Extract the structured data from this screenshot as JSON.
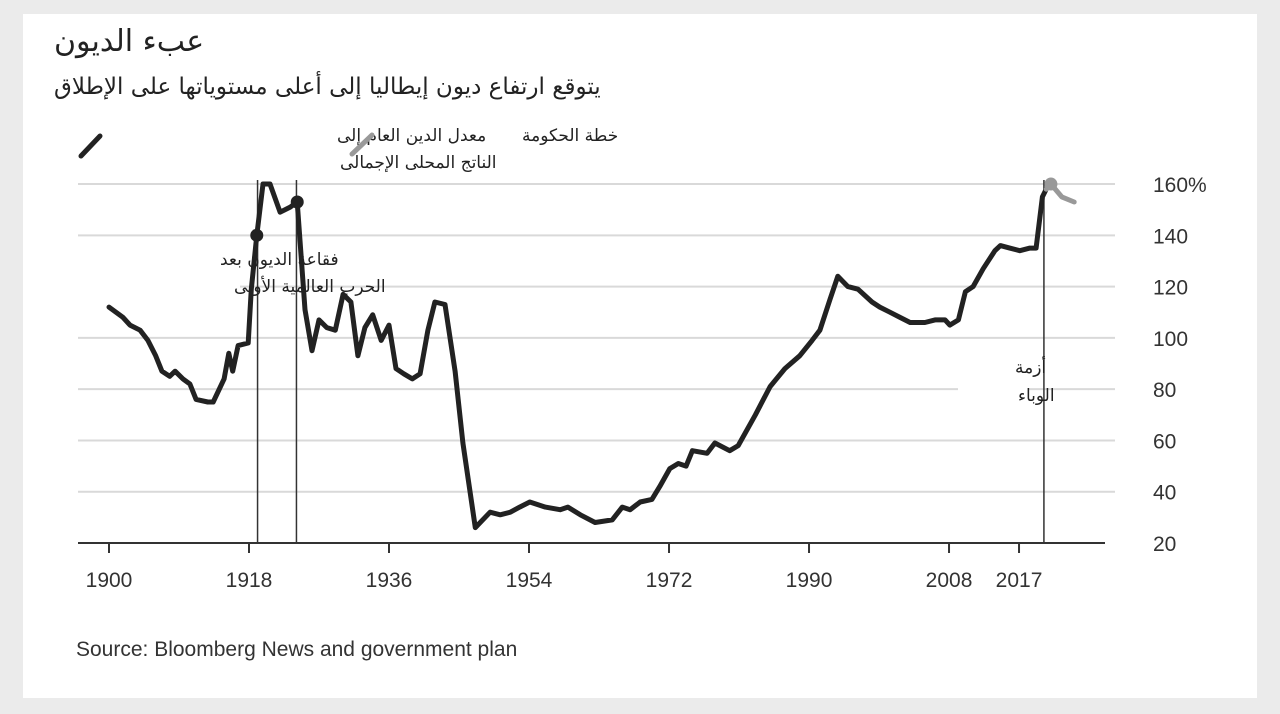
{
  "title": "عبء الديون",
  "subtitle": "يتوقع ارتفاع ديون إيطاليا إلى أعلى مستوياتها على الإطلاق",
  "source": "Source: Bloomberg News and government plan",
  "colors": {
    "background": "#ebebeb",
    "card": "#ffffff",
    "actual_line": "#222222",
    "plan_line": "#999999",
    "grid": "#d9d9d9",
    "axis": "#333333"
  },
  "chart_data": {
    "type": "line",
    "title": "عبء الديون",
    "subtitle": "يتوقع ارتفاع ديون إيطاليا إلى أعلى مستوياتها على الإطلاق",
    "xlabel": "",
    "ylabel": "",
    "xlim": [
      1896,
      2031
    ],
    "ylim": [
      20,
      160
    ],
    "x_ticks": [
      1900,
      1918,
      1936,
      1954,
      1972,
      1990,
      2008,
      2017
    ],
    "x_tick_labels": [
      "1900",
      "1918",
      "1936",
      "1954",
      "1972",
      "1990",
      "2008",
      "2017"
    ],
    "y_ticks": [
      20,
      40,
      60,
      80,
      100,
      120,
      140,
      160
    ],
    "y_tick_labels": [
      "20",
      "40",
      "60",
      "80",
      "100",
      "120",
      "140",
      "160%"
    ],
    "y_axis_position": "right",
    "grid": true,
    "legend": [
      {
        "name": "معدل الدين العام إلى الناتج المحلى الإجمالى",
        "line1": "معدل الدين العام إلى",
        "line2": "الناتج المحلى الإجمالى",
        "color": "#222222",
        "position": "top-left"
      },
      {
        "name": "خطة الحكومة",
        "color": "#999999",
        "position": "top-left"
      }
    ],
    "series": [
      {
        "name": "معدل الدين العام إلى الناتج المحلى الإجمالى",
        "color": "#222222",
        "x": [
          1900.0,
          1901.8,
          1902.7,
          1904.0,
          1905.0,
          1906.0,
          1906.8,
          1907.8,
          1908.5,
          1909.5,
          1910.4,
          1911.2,
          1912.7,
          1913.4,
          1914.8,
          1915.4,
          1915.9,
          1916.6,
          1917.9,
          1918.3,
          1919.0,
          1919.8,
          1920.7,
          1922.0,
          1923.3,
          1924.2,
          1925.2,
          1926.1,
          1927.0,
          1928.0,
          1929.1,
          1930.1,
          1931.1,
          1932.0,
          1932.9,
          1933.9,
          1935.0,
          1936.0,
          1936.9,
          1937.9,
          1939.0,
          1940.0,
          1941.0,
          1941.9,
          1943.2,
          1944.5,
          1945.5,
          1947.1,
          1949.0,
          1950.3,
          1951.6,
          1952.8,
          1954.1,
          1956.1,
          1958.0,
          1959.0,
          1960.6,
          1962.5,
          1964.7,
          1966.0,
          1967.0,
          1968.3,
          1969.8,
          1970.8,
          1972.1,
          1973.2,
          1974.2,
          1975.0,
          1976.9,
          1977.9,
          1979.8,
          1980.9,
          1983.1,
          1985.0,
          1986.9,
          1988.8,
          1990.4,
          1991.4,
          1992.7,
          1993.7,
          1995.0,
          1996.3,
          1998.1,
          1999.1,
          2000.4,
          2001.7,
          2003.0,
          2004.9,
          2006.2,
          2007.5,
          2008.1,
          2009.2,
          2010.1,
          2011.1,
          2012.4,
          2013.9,
          2014.6,
          2015.8,
          2017.1,
          2018.4,
          2019.2,
          2020.0,
          2020.5
        ],
        "y": [
          112,
          108,
          105,
          103,
          99,
          93,
          87,
          85,
          87,
          84,
          82,
          76,
          75,
          75,
          84,
          94,
          87,
          97,
          98,
          119,
          140,
          160,
          160,
          149,
          151,
          153,
          111,
          95,
          107,
          104,
          103,
          117,
          114,
          93,
          104,
          109,
          99,
          105,
          88,
          86,
          84,
          86,
          103,
          114,
          113,
          87,
          59,
          26,
          32,
          31,
          32,
          34,
          36,
          34,
          33,
          34,
          31,
          28,
          29,
          34,
          33,
          36,
          37,
          42,
          49,
          51,
          50,
          56,
          55,
          59,
          56,
          58,
          70,
          81,
          88,
          93,
          99,
          103,
          115,
          124,
          120,
          119,
          114,
          112,
          110,
          108,
          106,
          106,
          107,
          107,
          105,
          107,
          118,
          120,
          127,
          134,
          136,
          135,
          134,
          135,
          135,
          155,
          158
        ]
      },
      {
        "name": "خطة الحكومة",
        "color": "#999999",
        "x": [
          2020.5,
          2021.1,
          2022.5,
          2024.1
        ],
        "y": [
          158,
          160,
          155,
          153
        ]
      }
    ],
    "markers": [
      {
        "x": 1919.0,
        "y": 140,
        "series": "actual"
      },
      {
        "x": 1924.2,
        "y": 153,
        "series": "actual"
      },
      {
        "x": 2021.1,
        "y": 160,
        "series": "plan"
      }
    ],
    "vertical_lines": [
      1919.1,
      1924.1,
      2020.2
    ],
    "annotations": [
      {
        "id": "ww1",
        "line1": "فقاعة الديون بعد",
        "line2": "الحرب العالمية الأولى"
      },
      {
        "id": "pandemic",
        "line1": "أزمة",
        "line2": "الوباء"
      }
    ]
  }
}
